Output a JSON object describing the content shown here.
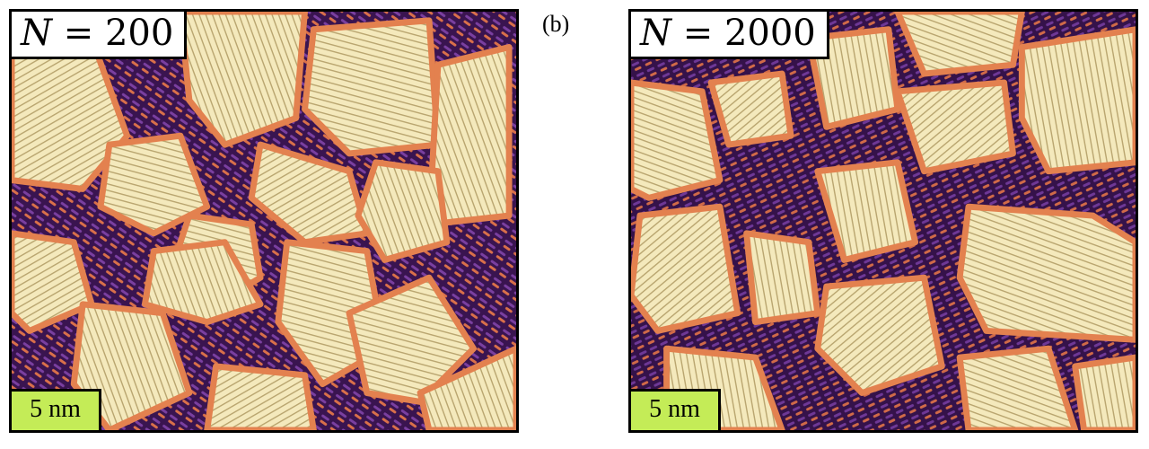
{
  "panels": [
    {
      "id": "a",
      "n_symbol": "N",
      "n_eq": " = ",
      "n_value": "200",
      "scale_bar": "5 nm"
    },
    {
      "id": "b",
      "n_symbol": "N",
      "n_eq": " = ",
      "n_value": "2000",
      "scale_bar": "5 nm"
    }
  ],
  "panel_b_tag": "(b)",
  "colors": {
    "background_dark": "#2a0c3a",
    "amorphous_purple": "#5a2a8a",
    "interface_orange": "#e07a4a",
    "crystal_cream": "#f2e6b4",
    "scale_bar_green": "#c4ec57"
  }
}
